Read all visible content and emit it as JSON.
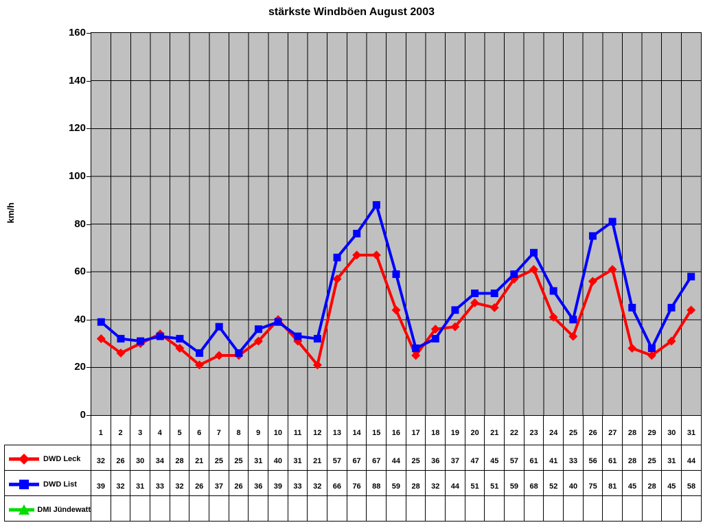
{
  "chart_data": {
    "type": "line",
    "title": "stärkste Windböen August 2003",
    "xlabel": "",
    "ylabel": "km/h",
    "ylim": [
      0,
      160
    ],
    "y_tick_step": 20,
    "grid": true,
    "plot_background": "#C0C0C0",
    "legend_position": "table-left",
    "categories": [
      "1",
      "2",
      "3",
      "4",
      "5",
      "6",
      "7",
      "8",
      "9",
      "10",
      "11",
      "12",
      "13",
      "14",
      "15",
      "16",
      "17",
      "18",
      "19",
      "20",
      "21",
      "22",
      "23",
      "24",
      "25",
      "26",
      "27",
      "28",
      "29",
      "30",
      "31"
    ],
    "series": [
      {
        "name": "DWD Leck",
        "color": "#FF0000",
        "marker": "diamond",
        "values": [
          32,
          26,
          30,
          34,
          28,
          21,
          25,
          25,
          31,
          40,
          31,
          21,
          57,
          67,
          67,
          44,
          25,
          36,
          37,
          47,
          45,
          57,
          61,
          41,
          33,
          56,
          61,
          28,
          25,
          31,
          44
        ]
      },
      {
        "name": "DWD List",
        "color": "#0000FF",
        "marker": "square",
        "values": [
          39,
          32,
          31,
          33,
          32,
          26,
          37,
          26,
          36,
          39,
          33,
          32,
          66,
          76,
          88,
          59,
          28,
          32,
          44,
          51,
          51,
          59,
          68,
          52,
          40,
          75,
          81,
          45,
          28,
          45,
          58
        ]
      },
      {
        "name": "DMI Jündewatt",
        "color": "#00DD00",
        "marker": "triangle",
        "values": []
      }
    ]
  }
}
